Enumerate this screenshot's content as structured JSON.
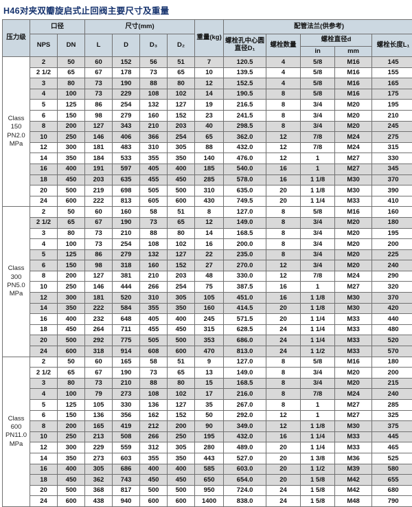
{
  "title": "H46对夹双瓣旋启式止回阀主要尺寸及重量",
  "colors": {
    "header_bg": "#ccd8e1",
    "row_stripe": "#d9d9d9",
    "border": "#707070",
    "title_text": "#16336e"
  },
  "columns": {
    "pressure_class": "压力级",
    "bore_group": "口径",
    "nps": "NPS",
    "dn": "DN",
    "dims_group": "尺寸(mm)",
    "l": "L",
    "d": "D",
    "d3": "D₃",
    "d2": "D₂",
    "weight": "重量(kg)",
    "flange_group": "配管法兰(供参考)",
    "bolt_circle": "螺栓孔中心圆直径D₁",
    "bolt_qty": "螺栓数量",
    "bolt_dia_group": "螺栓直径d",
    "bolt_dia_in": "in",
    "bolt_dia_mm": "mm",
    "bolt_len": "螺栓长度L₁"
  },
  "sections": [
    {
      "label": "Class 150 PN2.0 MPa",
      "shade_pattern": [
        1,
        0,
        1,
        1,
        0,
        0,
        1,
        1,
        0,
        0,
        1,
        1,
        0,
        0
      ],
      "rows": [
        [
          "2",
          "50",
          "60",
          "152",
          "56",
          "51",
          "7",
          "120.5",
          "4",
          "5/8",
          "M16",
          "145"
        ],
        [
          "2 1/2",
          "65",
          "67",
          "178",
          "73",
          "65",
          "10",
          "139.5",
          "4",
          "5/8",
          "M16",
          "155"
        ],
        [
          "3",
          "80",
          "73",
          "190",
          "88",
          "80",
          "12",
          "152.5",
          "4",
          "5/8",
          "M16",
          "165"
        ],
        [
          "4",
          "100",
          "73",
          "229",
          "108",
          "102",
          "14",
          "190.5",
          "8",
          "5/8",
          "M16",
          "175"
        ],
        [
          "5",
          "125",
          "86",
          "254",
          "132",
          "127",
          "19",
          "216.5",
          "8",
          "3/4",
          "M20",
          "195"
        ],
        [
          "6",
          "150",
          "98",
          "279",
          "160",
          "152",
          "23",
          "241.5",
          "8",
          "3/4",
          "M20",
          "210"
        ],
        [
          "8",
          "200",
          "127",
          "343",
          "210",
          "203",
          "40",
          "298.5",
          "8",
          "3/4",
          "M20",
          "245"
        ],
        [
          "10",
          "250",
          "146",
          "406",
          "366",
          "254",
          "65",
          "362.0",
          "12",
          "7/8",
          "M24",
          "275"
        ],
        [
          "12",
          "300",
          "181",
          "483",
          "310",
          "305",
          "88",
          "432.0",
          "12",
          "7/8",
          "M24",
          "315"
        ],
        [
          "14",
          "350",
          "184",
          "533",
          "355",
          "350",
          "140",
          "476.0",
          "12",
          "1",
          "M27",
          "330"
        ],
        [
          "16",
          "400",
          "191",
          "597",
          "405",
          "400",
          "185",
          "540.0",
          "16",
          "1",
          "M27",
          "345"
        ],
        [
          "18",
          "450",
          "203",
          "635",
          "455",
          "450",
          "285",
          "578.0",
          "16",
          "1 1/8",
          "M30",
          "370"
        ],
        [
          "20",
          "500",
          "219",
          "698",
          "505",
          "500",
          "310",
          "635.0",
          "20",
          "1 1/8",
          "M30",
          "390"
        ],
        [
          "24",
          "600",
          "222",
          "813",
          "605",
          "600",
          "430",
          "749.5",
          "20",
          "1 1/4",
          "M33",
          "410"
        ]
      ]
    },
    {
      "label": "Class 300 PN5.0 MPa",
      "shade_pattern": [
        0,
        1,
        0,
        0,
        1,
        1,
        0,
        0,
        1,
        1,
        0,
        0,
        1,
        1
      ],
      "rows": [
        [
          "2",
          "50",
          "60",
          "160",
          "58",
          "51",
          "8",
          "127.0",
          "8",
          "5/8",
          "M16",
          "160"
        ],
        [
          "2 1/2",
          "65",
          "67",
          "190",
          "73",
          "65",
          "12",
          "149.0",
          "8",
          "3/4",
          "M20",
          "180"
        ],
        [
          "3",
          "80",
          "73",
          "210",
          "88",
          "80",
          "14",
          "168.5",
          "8",
          "3/4",
          "M20",
          "195"
        ],
        [
          "4",
          "100",
          "73",
          "254",
          "108",
          "102",
          "16",
          "200.0",
          "8",
          "3/4",
          "M20",
          "200"
        ],
        [
          "5",
          "125",
          "86",
          "279",
          "132",
          "127",
          "22",
          "235.0",
          "8",
          "3/4",
          "M20",
          "225"
        ],
        [
          "6",
          "150",
          "98",
          "318",
          "160",
          "152",
          "27",
          "270.0",
          "12",
          "3/4",
          "M20",
          "240"
        ],
        [
          "8",
          "200",
          "127",
          "381",
          "210",
          "203",
          "48",
          "330.0",
          "12",
          "7/8",
          "M24",
          "290"
        ],
        [
          "10",
          "250",
          "146",
          "444",
          "266",
          "254",
          "75",
          "387.5",
          "16",
          "1",
          "M27",
          "320"
        ],
        [
          "12",
          "300",
          "181",
          "520",
          "310",
          "305",
          "105",
          "451.0",
          "16",
          "1 1/8",
          "M30",
          "370"
        ],
        [
          "14",
          "350",
          "222",
          "584",
          "355",
          "350",
          "160",
          "414.5",
          "20",
          "1 1/8",
          "M30",
          "420"
        ],
        [
          "16",
          "400",
          "232",
          "648",
          "405",
          "400",
          "245",
          "571.5",
          "20",
          "1 1/4",
          "M33",
          "440"
        ],
        [
          "18",
          "450",
          "264",
          "711",
          "455",
          "450",
          "315",
          "628.5",
          "24",
          "1 1/4",
          "M33",
          "480"
        ],
        [
          "20",
          "500",
          "292",
          "775",
          "505",
          "500",
          "353",
          "686.0",
          "24",
          "1 1/4",
          "M33",
          "520"
        ],
        [
          "24",
          "600",
          "318",
          "914",
          "608",
          "600",
          "470",
          "813.0",
          "24",
          "1 1/2",
          "M33",
          "570"
        ]
      ]
    },
    {
      "label": "Class 600 PN11.0 MPa",
      "shade_pattern": [
        0,
        0,
        1,
        1,
        0,
        0,
        1,
        1,
        0,
        0,
        1,
        1,
        0,
        0
      ],
      "rows": [
        [
          "2",
          "50",
          "60",
          "165",
          "58",
          "51",
          "9",
          "127.0",
          "8",
          "5/8",
          "M16",
          "180"
        ],
        [
          "2 1/2",
          "65",
          "67",
          "190",
          "73",
          "65",
          "13",
          "149.0",
          "8",
          "3/4",
          "M20",
          "200"
        ],
        [
          "3",
          "80",
          "73",
          "210",
          "88",
          "80",
          "15",
          "168.5",
          "8",
          "3/4",
          "M20",
          "215"
        ],
        [
          "4",
          "100",
          "79",
          "273",
          "108",
          "102",
          "17",
          "216.0",
          "8",
          "7/8",
          "M24",
          "240"
        ],
        [
          "5",
          "125",
          "105",
          "330",
          "136",
          "127",
          "35",
          "267.0",
          "8",
          "1",
          "M27",
          "285"
        ],
        [
          "6",
          "150",
          "136",
          "356",
          "162",
          "152",
          "50",
          "292.0",
          "12",
          "1",
          "M27",
          "325"
        ],
        [
          "8",
          "200",
          "165",
          "419",
          "212",
          "200",
          "90",
          "349.0",
          "12",
          "1 1/8",
          "M30",
          "375"
        ],
        [
          "10",
          "250",
          "213",
          "508",
          "266",
          "250",
          "195",
          "432.0",
          "16",
          "1 1/4",
          "M33",
          "445"
        ],
        [
          "12",
          "300",
          "229",
          "559",
          "312",
          "305",
          "280",
          "489.0",
          "20",
          "1 1/4",
          "M33",
          "465"
        ],
        [
          "14",
          "350",
          "273",
          "603",
          "355",
          "350",
          "443",
          "527.0",
          "20",
          "1 3/8",
          "M36",
          "525"
        ],
        [
          "16",
          "400",
          "305",
          "686",
          "400",
          "400",
          "585",
          "603.0",
          "20",
          "1 1/2",
          "M39",
          "580"
        ],
        [
          "18",
          "450",
          "362",
          "743",
          "450",
          "450",
          "650",
          "654.0",
          "20",
          "1 5/8",
          "M42",
          "655"
        ],
        [
          "20",
          "500",
          "368",
          "817",
          "500",
          "500",
          "950",
          "724.0",
          "24",
          "1 5/8",
          "M42",
          "680"
        ],
        [
          "24",
          "600",
          "438",
          "940",
          "600",
          "600",
          "1400",
          "838.0",
          "24",
          "1 5/8",
          "M48",
          "790"
        ]
      ]
    }
  ]
}
